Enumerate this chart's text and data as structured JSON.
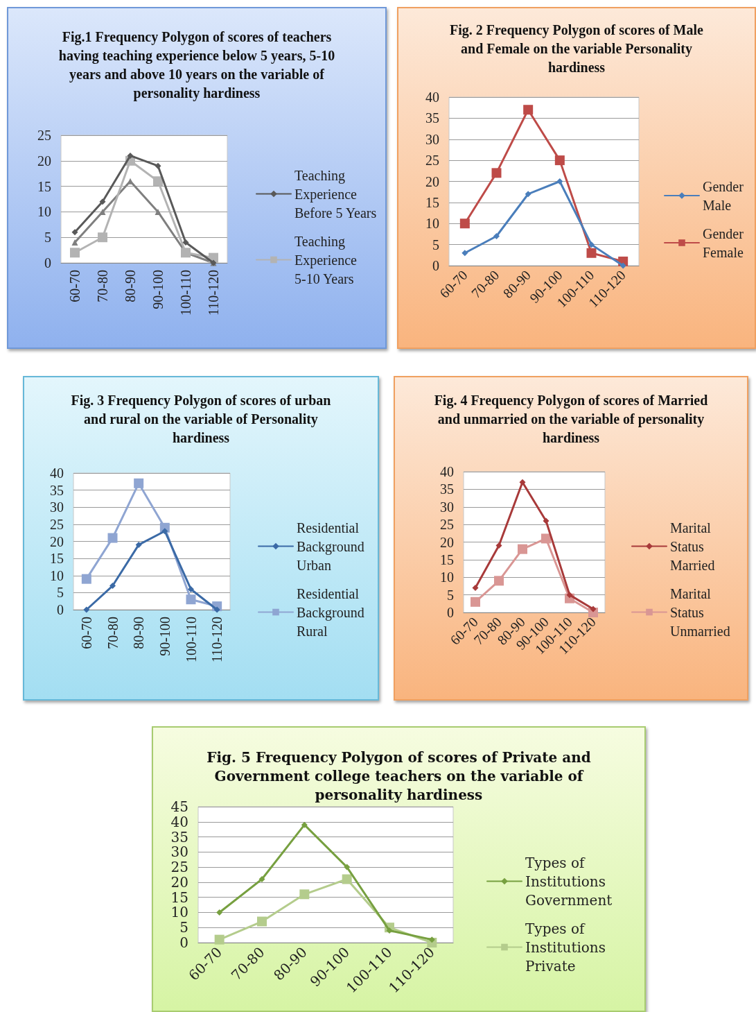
{
  "chart_data": [
    {
      "type": "line",
      "title": "Fig.1 Frequency Polygon of scores of teachers having teaching experience below 5 years, 5-10 years and above 10 years on the variable of personality hardiness",
      "categories": [
        "60-70",
        "70-80",
        "80-90",
        "90-100",
        "100-110",
        "110-120"
      ],
      "ylim": [
        0,
        25
      ],
      "yticks": [
        0,
        5,
        10,
        15,
        20,
        25
      ],
      "grid": "y",
      "legend": "right",
      "series": [
        {
          "name": "Teaching Experience Before 5 Years",
          "color": "#595959",
          "marker": "diamond",
          "values": [
            6,
            12,
            21,
            19,
            4,
            0
          ]
        },
        {
          "name": "Teaching Experience 5-10 Years",
          "color": "#b3b3b3",
          "marker": "square",
          "values": [
            2,
            5,
            20,
            16,
            2,
            1
          ]
        },
        {
          "color": "#7f7f7f",
          "marker": "triangle",
          "values": [
            4,
            10,
            16,
            10,
            2,
            0
          ]
        }
      ]
    },
    {
      "type": "line",
      "title": "Fig. 2 Frequency Polygon of scores of Male and Female on the variable Personality hardiness",
      "categories": [
        "60-70",
        "70-80",
        "80-90",
        "90-100",
        "100-110",
        "110-120"
      ],
      "ylim": [
        0,
        40
      ],
      "yticks": [
        0,
        5,
        10,
        15,
        20,
        25,
        30,
        35,
        40
      ],
      "grid": "y",
      "legend": "right",
      "series": [
        {
          "name": "Gender Male",
          "color": "#4a7ebb",
          "marker": "diamond",
          "values": [
            3,
            7,
            17,
            20,
            5,
            0
          ]
        },
        {
          "name": "Gender Female",
          "color": "#be4b48",
          "marker": "square",
          "values": [
            10,
            22,
            37,
            25,
            3,
            1
          ]
        }
      ]
    },
    {
      "type": "line",
      "title": "Fig. 3 Frequency Polygon of scores of urban and rural on the variable of Personality hardiness",
      "categories": [
        "60-70",
        "70-80",
        "80-90",
        "90-100",
        "100-110",
        "110-120"
      ],
      "ylim": [
        0,
        40
      ],
      "yticks": [
        0,
        5,
        10,
        15,
        20,
        25,
        30,
        35,
        40
      ],
      "grid": "y",
      "legend": "right",
      "series": [
        {
          "name": "Residential Background Urban",
          "color": "#3b6aa6",
          "marker": "diamond",
          "values": [
            0,
            7,
            19,
            23,
            6,
            0
          ]
        },
        {
          "name": "Residential Background Rural",
          "color": "#8fa5d2",
          "marker": "square",
          "values": [
            9,
            21,
            37,
            24,
            3,
            1
          ]
        }
      ]
    },
    {
      "type": "line",
      "title": "Fig. 4 Frequency Polygon of scores of Married and unmarried on the variable of personality hardiness",
      "categories": [
        "60-70",
        "70-80",
        "80-90",
        "90-100",
        "100-110",
        "110-120"
      ],
      "ylim": [
        0,
        40
      ],
      "yticks": [
        0,
        5,
        10,
        15,
        20,
        25,
        30,
        35,
        40
      ],
      "grid": "y",
      "legend": "right",
      "series": [
        {
          "name": "Marital Status Married",
          "color": "#a83a3a",
          "marker": "diamond",
          "values": [
            7,
            19,
            37,
            26,
            5,
            1
          ]
        },
        {
          "name": "Marital Status Unmarried",
          "color": "#d99694",
          "marker": "square",
          "values": [
            3,
            9,
            18,
            21,
            4,
            0
          ]
        }
      ]
    },
    {
      "type": "line",
      "title": "Fig. 5 Frequency Polygon of scores of Private and Government college teachers on the variable of personality hardiness",
      "categories": [
        "60-70",
        "70-80",
        "80-90",
        "90-100",
        "100-110",
        "110-120"
      ],
      "ylim": [
        0,
        45
      ],
      "yticks": [
        0,
        5,
        10,
        15,
        20,
        25,
        30,
        35,
        40,
        45
      ],
      "grid": "y",
      "legend": "right",
      "series": [
        {
          "name": "Types of Institutions Government",
          "color": "#77a040",
          "marker": "diamond",
          "values": [
            10,
            21,
            39,
            25,
            4,
            1
          ]
        },
        {
          "name": "Types of Institutions Private",
          "color": "#b4cc8c",
          "marker": "square",
          "values": [
            1,
            7,
            16,
            21,
            5,
            0
          ]
        }
      ]
    }
  ]
}
